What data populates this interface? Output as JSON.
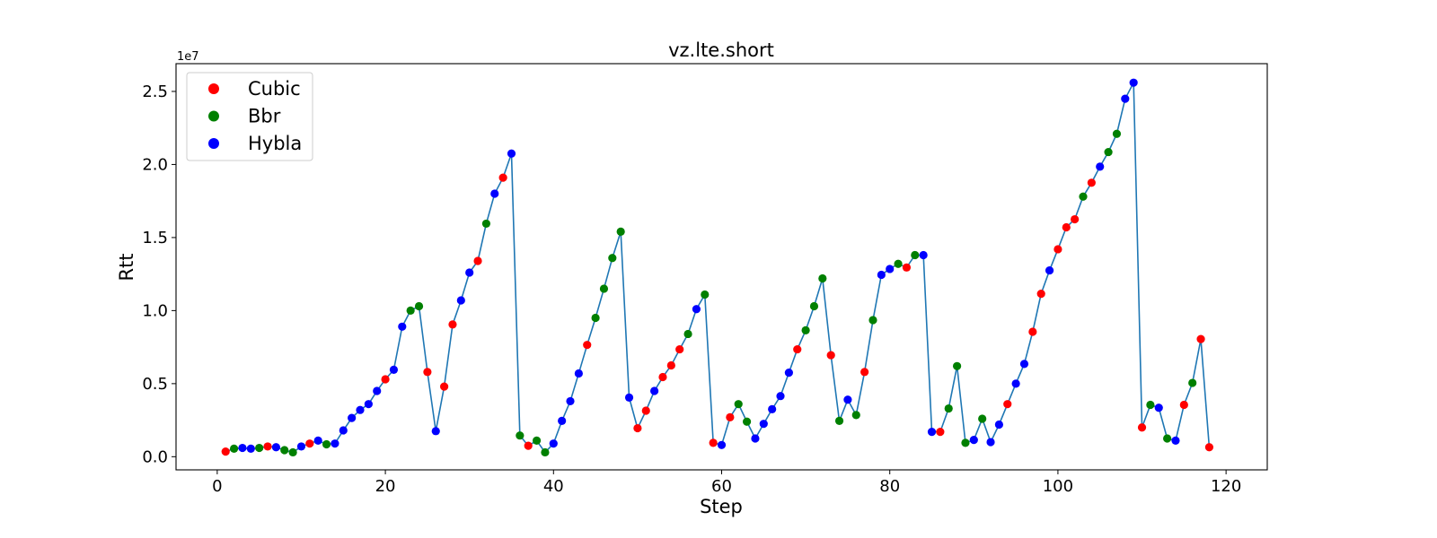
{
  "chart_data": {
    "type": "line",
    "title": "vz.lte.short",
    "xlabel": "Step",
    "ylabel": "Rtt",
    "y_offset_label": "1e7",
    "xlim": [
      -4.9,
      124.9
    ],
    "ylim": [
      -0.9,
      26.9
    ],
    "x_ticks": [
      0,
      20,
      40,
      60,
      80,
      100,
      120
    ],
    "x_tick_labels": [
      "0",
      "20",
      "40",
      "60",
      "80",
      "100",
      "120"
    ],
    "y_ticks": [
      0,
      5,
      10,
      15,
      20,
      25
    ],
    "y_tick_labels": [
      "0.0",
      "0.5",
      "1.0",
      "1.5",
      "2.0",
      "2.5"
    ],
    "grid": false,
    "legend_position": "upper left",
    "line_color": "#1f77b4",
    "marker_colors": {
      "C": "#ff0000",
      "B": "#008000",
      "H": "#0000ff"
    },
    "legend": [
      {
        "key": "C",
        "label": "Cubic",
        "color": "#ff0000"
      },
      {
        "key": "B",
        "label": "Bbr",
        "color": "#008000"
      },
      {
        "key": "H",
        "label": "Hybla",
        "color": "#0000ff"
      }
    ],
    "points": [
      [
        1,
        0.35,
        "C"
      ],
      [
        2,
        0.55,
        "B"
      ],
      [
        3,
        0.6,
        "H"
      ],
      [
        4,
        0.55,
        "H"
      ],
      [
        5,
        0.6,
        "B"
      ],
      [
        6,
        0.7,
        "C"
      ],
      [
        7,
        0.65,
        "H"
      ],
      [
        8,
        0.45,
        "B"
      ],
      [
        9,
        0.3,
        "B"
      ],
      [
        10,
        0.7,
        "H"
      ],
      [
        11,
        0.9,
        "C"
      ],
      [
        12,
        1.1,
        "H"
      ],
      [
        13,
        0.85,
        "B"
      ],
      [
        14,
        0.9,
        "H"
      ],
      [
        15,
        1.8,
        "H"
      ],
      [
        16,
        2.65,
        "H"
      ],
      [
        17,
        3.2,
        "H"
      ],
      [
        18,
        3.6,
        "H"
      ],
      [
        19,
        4.5,
        "H"
      ],
      [
        20,
        5.3,
        "C"
      ],
      [
        21,
        5.95,
        "H"
      ],
      [
        22,
        8.9,
        "H"
      ],
      [
        23,
        10.0,
        "B"
      ],
      [
        24,
        10.3,
        "B"
      ],
      [
        25,
        5.8,
        "C"
      ],
      [
        26,
        1.75,
        "H"
      ],
      [
        27,
        4.8,
        "C"
      ],
      [
        28,
        9.05,
        "C"
      ],
      [
        29,
        10.7,
        "H"
      ],
      [
        30,
        12.6,
        "H"
      ],
      [
        31,
        13.4,
        "C"
      ],
      [
        32,
        15.95,
        "B"
      ],
      [
        33,
        18.0,
        "H"
      ],
      [
        34,
        19.1,
        "C"
      ],
      [
        35,
        20.75,
        "H"
      ],
      [
        36,
        1.45,
        "B"
      ],
      [
        37,
        0.75,
        "C"
      ],
      [
        38,
        1.1,
        "B"
      ],
      [
        39,
        0.3,
        "B"
      ],
      [
        40,
        0.9,
        "H"
      ],
      [
        41,
        2.45,
        "H"
      ],
      [
        42,
        3.8,
        "H"
      ],
      [
        43,
        5.7,
        "H"
      ],
      [
        44,
        7.65,
        "C"
      ],
      [
        45,
        9.5,
        "B"
      ],
      [
        46,
        11.5,
        "B"
      ],
      [
        47,
        13.6,
        "B"
      ],
      [
        48,
        15.4,
        "B"
      ],
      [
        49,
        4.05,
        "H"
      ],
      [
        50,
        1.95,
        "C"
      ],
      [
        51,
        3.15,
        "C"
      ],
      [
        52,
        4.5,
        "H"
      ],
      [
        53,
        5.45,
        "C"
      ],
      [
        54,
        6.25,
        "C"
      ],
      [
        55,
        7.35,
        "C"
      ],
      [
        56,
        8.4,
        "B"
      ],
      [
        57,
        10.1,
        "H"
      ],
      [
        58,
        11.1,
        "B"
      ],
      [
        59,
        0.95,
        "C"
      ],
      [
        60,
        0.8,
        "H"
      ],
      [
        61,
        2.7,
        "C"
      ],
      [
        62,
        3.6,
        "B"
      ],
      [
        63,
        2.4,
        "B"
      ],
      [
        64,
        1.25,
        "H"
      ],
      [
        65,
        2.25,
        "H"
      ],
      [
        66,
        3.25,
        "H"
      ],
      [
        67,
        4.15,
        "H"
      ],
      [
        68,
        5.75,
        "H"
      ],
      [
        69,
        7.35,
        "C"
      ],
      [
        70,
        8.65,
        "B"
      ],
      [
        71,
        10.3,
        "B"
      ],
      [
        72,
        12.2,
        "B"
      ],
      [
        73,
        6.95,
        "C"
      ],
      [
        74,
        2.45,
        "B"
      ],
      [
        75,
        3.9,
        "H"
      ],
      [
        76,
        2.85,
        "B"
      ],
      [
        77,
        5.8,
        "C"
      ],
      [
        78,
        9.35,
        "B"
      ],
      [
        79,
        12.45,
        "H"
      ],
      [
        80,
        12.85,
        "H"
      ],
      [
        81,
        13.2,
        "B"
      ],
      [
        82,
        12.95,
        "C"
      ],
      [
        83,
        13.8,
        "B"
      ],
      [
        84,
        13.8,
        "H"
      ],
      [
        85,
        1.7,
        "H"
      ],
      [
        86,
        1.7,
        "C"
      ],
      [
        87,
        3.3,
        "B"
      ],
      [
        88,
        6.2,
        "B"
      ],
      [
        89,
        0.95,
        "B"
      ],
      [
        90,
        1.15,
        "H"
      ],
      [
        91,
        2.6,
        "B"
      ],
      [
        92,
        1.0,
        "H"
      ],
      [
        93,
        2.2,
        "H"
      ],
      [
        94,
        3.6,
        "C"
      ],
      [
        95,
        5.0,
        "H"
      ],
      [
        96,
        6.35,
        "H"
      ],
      [
        97,
        8.55,
        "C"
      ],
      [
        98,
        11.15,
        "C"
      ],
      [
        99,
        12.75,
        "H"
      ],
      [
        100,
        14.2,
        "C"
      ],
      [
        101,
        15.7,
        "C"
      ],
      [
        102,
        16.25,
        "C"
      ],
      [
        103,
        17.8,
        "B"
      ],
      [
        104,
        18.75,
        "C"
      ],
      [
        105,
        19.85,
        "H"
      ],
      [
        106,
        20.85,
        "B"
      ],
      [
        107,
        22.1,
        "B"
      ],
      [
        108,
        24.5,
        "H"
      ],
      [
        109,
        25.6,
        "H"
      ],
      [
        110,
        2.0,
        "C"
      ],
      [
        111,
        3.55,
        "B"
      ],
      [
        112,
        3.35,
        "H"
      ],
      [
        113,
        1.25,
        "B"
      ],
      [
        114,
        1.1,
        "H"
      ],
      [
        115,
        3.55,
        "C"
      ],
      [
        116,
        5.05,
        "B"
      ],
      [
        117,
        8.05,
        "C"
      ],
      [
        118,
        0.65,
        "C"
      ]
    ]
  }
}
